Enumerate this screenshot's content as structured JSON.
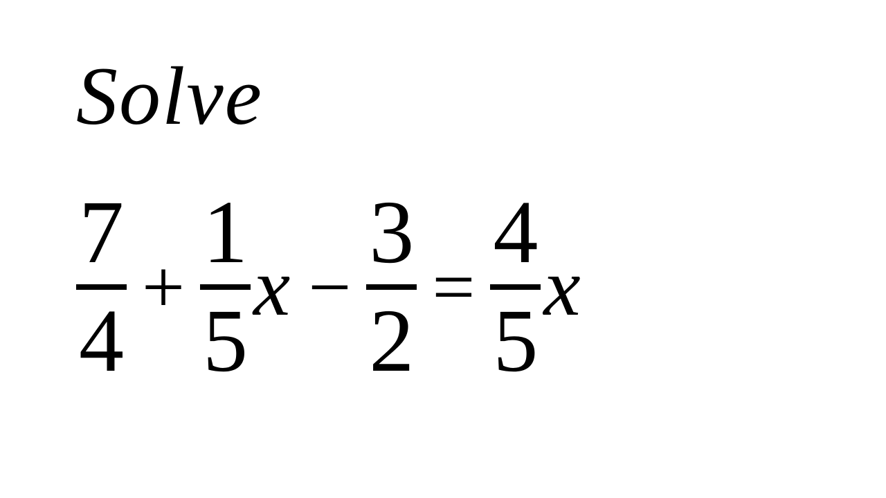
{
  "title": "Solve",
  "equation": {
    "terms": [
      {
        "type": "fraction",
        "num": "7",
        "den": "4"
      },
      {
        "type": "op",
        "symbol": "+"
      },
      {
        "type": "fraction",
        "num": "1",
        "den": "5"
      },
      {
        "type": "var",
        "symbol": "x"
      },
      {
        "type": "op",
        "symbol": "−"
      },
      {
        "type": "fraction",
        "num": "3",
        "den": "2"
      },
      {
        "type": "eq",
        "symbol": "="
      },
      {
        "type": "fraction",
        "num": "4",
        "den": "5"
      },
      {
        "type": "var",
        "symbol": "x"
      }
    ]
  },
  "style": {
    "background_color": "#ffffff",
    "text_color": "#000000",
    "title_fontsize": 120,
    "equation_fontsize": 130,
    "font_family": "Georgia, Times New Roman, serif",
    "fraction_bar_thickness": 8
  }
}
